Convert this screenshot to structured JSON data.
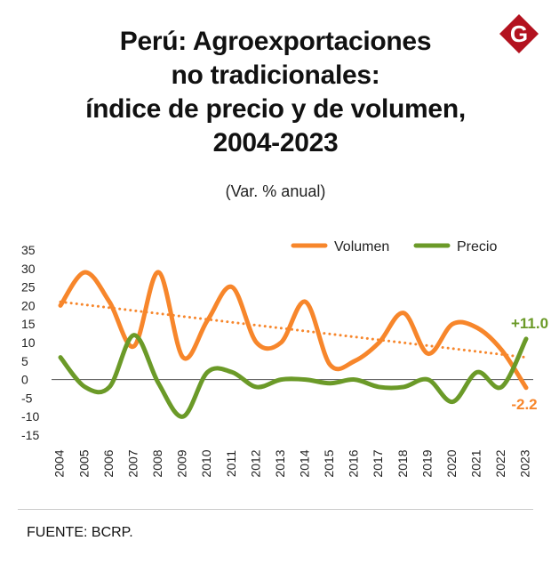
{
  "header": {
    "title_lines": [
      "Perú: Agroexportaciones",
      "no tradicionales:",
      "índice de precio y de volumen,",
      "2004-2023"
    ],
    "subtitle": "(Var. % anual)"
  },
  "logo": {
    "letter": "G",
    "color": "#b3121f",
    "icon": "gestion-logo-icon"
  },
  "footer": {
    "source": "FUENTE: BCRP."
  },
  "colors": {
    "volumen": "#f7862b",
    "precio": "#6b9a28",
    "trend": "#f7862b"
  },
  "chart_data": {
    "type": "line",
    "title": "Perú: Agroexportaciones no tradicionales: índice de precio y de volumen, 2004-2023",
    "subtitle": "(Var. % anual)",
    "xlabel": "",
    "ylabel": "",
    "ylim": [
      -15,
      35
    ],
    "yticks": [
      35,
      30,
      25,
      20,
      15,
      10,
      5,
      0,
      -5,
      -10,
      -15
    ],
    "grid": false,
    "legend_position": "top-right",
    "categories": [
      "2004",
      "2005",
      "2006",
      "2007",
      "2008",
      "2009",
      "2010",
      "2011",
      "2012",
      "2013",
      "2014",
      "2015",
      "2016",
      "2017",
      "2018",
      "2019",
      "2020",
      "2021",
      "2022",
      "2023"
    ],
    "series": [
      {
        "name": "Volumen",
        "values": [
          20,
          29,
          21,
          9,
          29,
          6,
          16,
          25,
          10,
          10,
          21,
          4,
          5,
          10,
          18,
          7,
          15,
          14,
          8,
          -2.2
        ]
      },
      {
        "name": "Precio",
        "values": [
          6,
          -2,
          -2,
          12,
          -1,
          -10,
          2,
          2,
          -2,
          0,
          0,
          -1,
          0,
          -2,
          -2,
          0,
          -6,
          2,
          -2,
          11.0
        ]
      }
    ],
    "trendline": {
      "series": "Volumen",
      "start": 21,
      "end": 6
    },
    "annotations": [
      {
        "series": "Precio",
        "category": "2023",
        "text": "+11.0"
      },
      {
        "series": "Volumen",
        "category": "2023",
        "text": "-2.2"
      }
    ]
  }
}
